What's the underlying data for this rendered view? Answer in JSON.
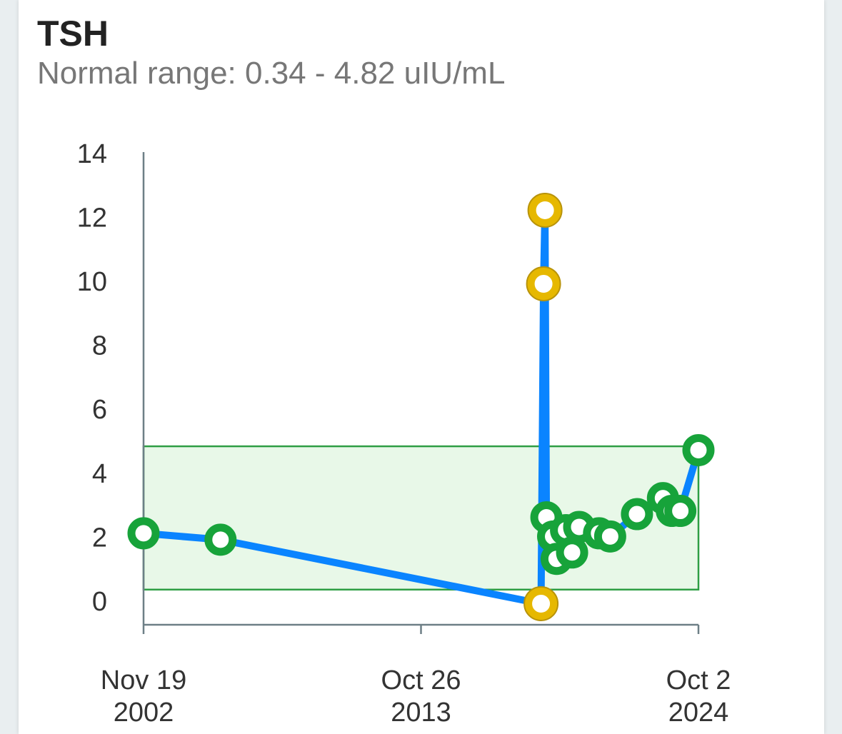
{
  "header": {
    "title": "TSH",
    "subtitle": "Normal range: 0.34 - 4.82 uIU/mL"
  },
  "colors": {
    "line": "#0a84ff",
    "normal_point": "#17a33a",
    "abnormal_point": "#e6b800",
    "abnormal_point_border": "#b8930a",
    "range_fill": "#e8f8e8",
    "range_stroke": "#2e9e44",
    "axis": "#6d7f86"
  },
  "chart_data": {
    "type": "line",
    "title": "TSH",
    "normal_range": [
      0.34,
      4.82
    ],
    "unit": "uIU/mL",
    "ylim": [
      -0.7,
      14
    ],
    "yticks": [
      0,
      2,
      4,
      6,
      8,
      10,
      12,
      14
    ],
    "xlim": [
      "2002-11-19",
      "2024-10-02"
    ],
    "xticks": [
      {
        "date": "2002-11-19",
        "line1": "Nov 19",
        "line2": "2002"
      },
      {
        "date": "2013-10-26",
        "line1": "Oct 26",
        "line2": "2013"
      },
      {
        "date": "2024-10-02",
        "line1": "Oct 2",
        "line2": "2024"
      }
    ],
    "series": [
      {
        "points": [
          {
            "x": "2002-11-19",
            "y": 2.1,
            "status": "normal"
          },
          {
            "x": "2005-12-01",
            "y": 1.9,
            "status": "normal"
          },
          {
            "x": "2018-07-20",
            "y": -0.1,
            "status": "abnormal"
          },
          {
            "x": "2018-08-25",
            "y": 9.9,
            "status": "abnormal"
          },
          {
            "x": "2018-09-15",
            "y": 12.2,
            "status": "abnormal"
          },
          {
            "x": "2018-10-05",
            "y": 2.6,
            "status": "normal"
          },
          {
            "x": "2019-01-10",
            "y": 2.0,
            "status": "normal"
          },
          {
            "x": "2019-03-01",
            "y": 1.3,
            "status": "normal"
          },
          {
            "x": "2019-07-15",
            "y": 2.2,
            "status": "normal"
          },
          {
            "x": "2019-10-10",
            "y": 1.5,
            "status": "normal"
          },
          {
            "x": "2020-01-20",
            "y": 2.3,
            "status": "normal"
          },
          {
            "x": "2020-11-01",
            "y": 2.1,
            "status": "normal"
          },
          {
            "x": "2021-04-10",
            "y": 2.0,
            "status": "normal"
          },
          {
            "x": "2022-05-01",
            "y": 2.7,
            "status": "normal"
          },
          {
            "x": "2023-05-10",
            "y": 3.2,
            "status": "normal"
          },
          {
            "x": "2023-09-15",
            "y": 2.8,
            "status": "normal"
          },
          {
            "x": "2024-01-15",
            "y": 2.8,
            "status": "normal"
          },
          {
            "x": "2024-10-02",
            "y": 4.7,
            "status": "normal"
          }
        ]
      }
    ]
  }
}
